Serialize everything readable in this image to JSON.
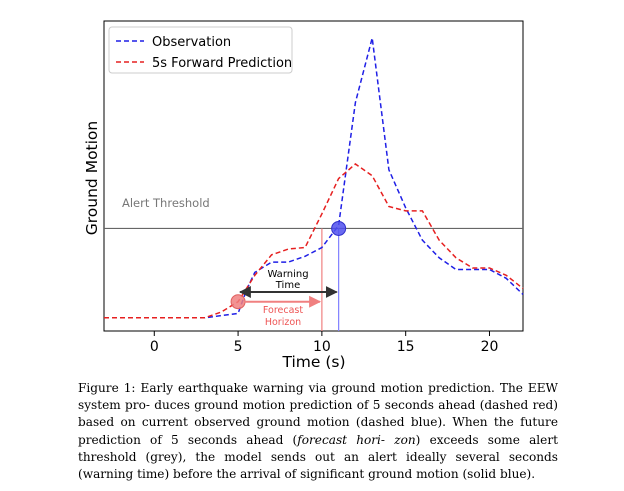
{
  "chart_data": {
    "type": "line",
    "title": "",
    "xlabel": "Time (s)",
    "ylabel": "Ground Motion",
    "xlim": [
      -3,
      22
    ],
    "ylim": [
      0,
      1
    ],
    "x_ticks": [
      "0",
      "5",
      "10",
      "15",
      "20"
    ],
    "x_tick_values": [
      0,
      5,
      10,
      15,
      20
    ],
    "grid": false,
    "legend_position": "top-left",
    "series": [
      {
        "name": "Observation",
        "color": "#1f1fe6",
        "style": "dashed",
        "x": [
          -3,
          0,
          3,
          5,
          5.5,
          6,
          7,
          8,
          9,
          10,
          11,
          12,
          13,
          14,
          15,
          16,
          17,
          18,
          19,
          20,
          21,
          22
        ],
        "y": [
          0.045,
          0.045,
          0.045,
          0.06,
          0.14,
          0.2,
          0.235,
          0.235,
          0.255,
          0.285,
          0.36,
          0.78,
          1.0,
          0.55,
          0.42,
          0.31,
          0.25,
          0.21,
          0.21,
          0.21,
          0.18,
          0.125
        ]
      },
      {
        "name": "5s Forward Prediction",
        "color": "#e62020",
        "style": "dashed",
        "x": [
          -3,
          0,
          3,
          4,
          5,
          6,
          7,
          8,
          9,
          10,
          11,
          12,
          13,
          14,
          15,
          16,
          17,
          18,
          19,
          20,
          21,
          22
        ],
        "y": [
          0.045,
          0.045,
          0.045,
          0.065,
          0.1,
          0.19,
          0.26,
          0.28,
          0.285,
          0.4,
          0.52,
          0.57,
          0.53,
          0.425,
          0.41,
          0.41,
          0.31,
          0.25,
          0.215,
          0.215,
          0.19,
          0.145
        ]
      }
    ],
    "annotations": {
      "alert_threshold_label": "Alert Threshold",
      "alert_threshold_value": 0.35,
      "warning_time_line1": "Warning",
      "warning_time_line2": "Time",
      "forecast_horizon_line1": "Forecast",
      "forecast_horizon_line2": "Horizon",
      "forecast_point": {
        "x": 5,
        "y": 0.1
      },
      "arrival_point": {
        "x": 11,
        "y": 0.35
      },
      "forecast_vline_x": 10,
      "arrival_vline_x": 11,
      "threshold_color": "#666666",
      "forecast_color": "#f08080",
      "arrival_color": "#8080ff",
      "warning_arrow_color": "#000000"
    }
  },
  "caption": {
    "line1": "Figure 1: Early earthquake warning via ground motion prediction. The EEW system pro-",
    "line2": "duces ground motion prediction of 5 seconds ahead (dashed red) based on current observed",
    "line3": "ground motion (dashed blue). When the future prediction of 5 seconds ahead (",
    "line3_italic": "forecast hori-",
    "line4_italic": "zon",
    "line4": ") exceeds some alert threshold (grey), the model sends out an alert ideally several seconds",
    "line5": "(warning time) before the arrival of significant ground motion (solid blue)."
  }
}
